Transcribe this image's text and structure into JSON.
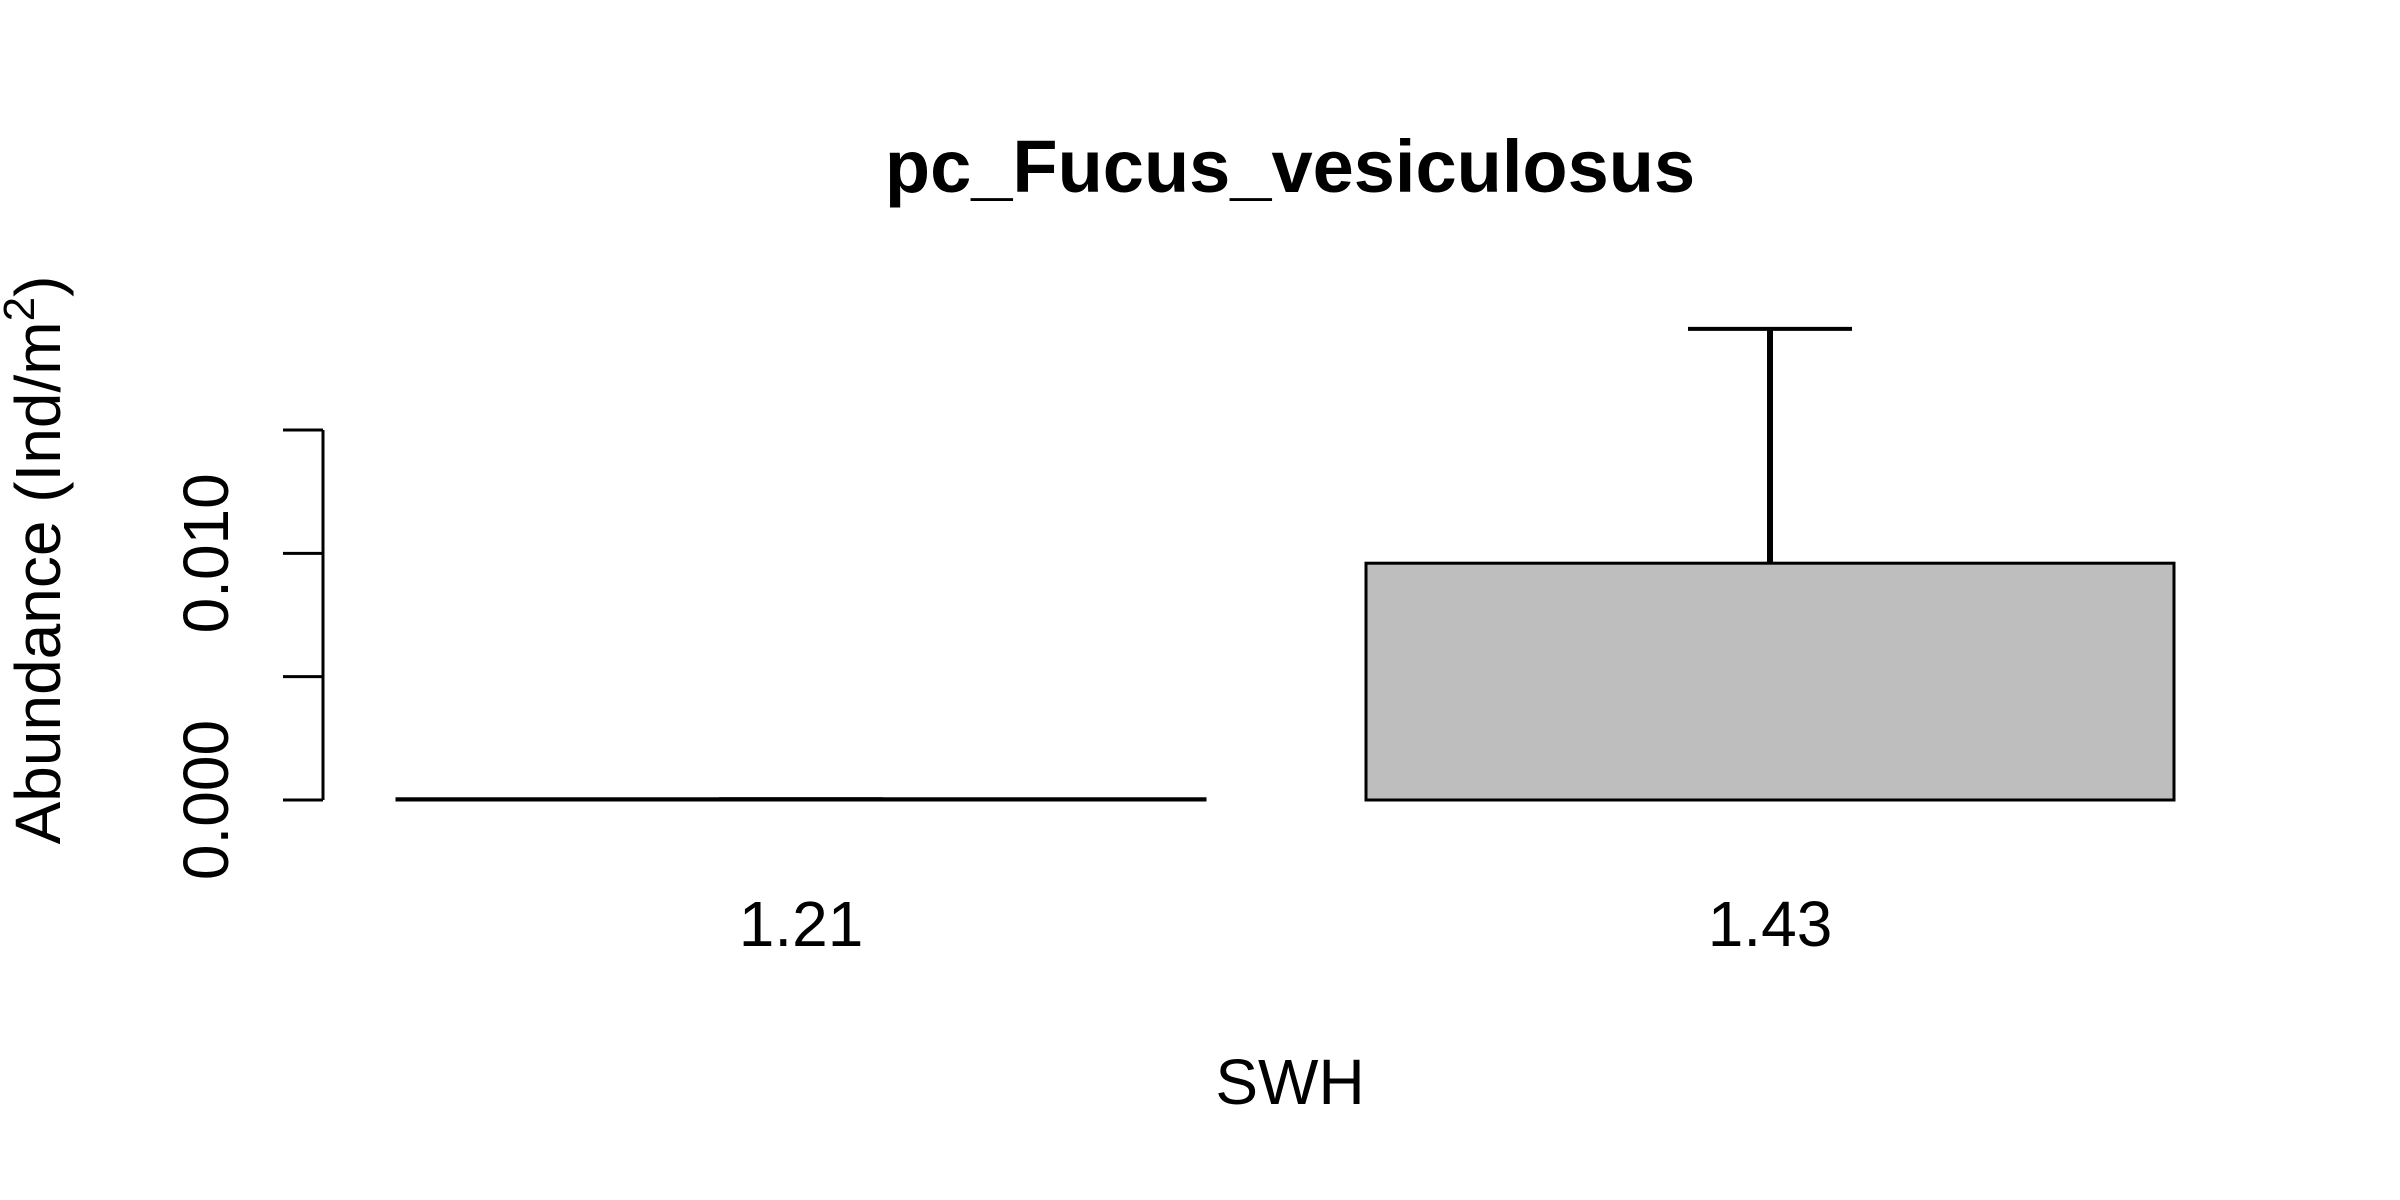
{
  "chart_data": {
    "type": "bar",
    "title": "pc_Fucus_vesiculosus",
    "xlabel": "SWH",
    "ylabel": {
      "main": "Abundance (Ind/m",
      "superscript": "2",
      "close": ")"
    },
    "categories": [
      "1.21",
      "1.43"
    ],
    "values": [
      5e-05,
      0.0096
    ],
    "errors_upper": [
      0.0,
      0.0191
    ],
    "ylim": [
      0,
      0.015
    ],
    "yticks": [
      0,
      0.005,
      0.01,
      0.015
    ],
    "ytick_labels": [
      "0.000",
      "",
      "0.010",
      ""
    ],
    "bar_color": "#bebebe",
    "grid": false,
    "legend": false
  }
}
